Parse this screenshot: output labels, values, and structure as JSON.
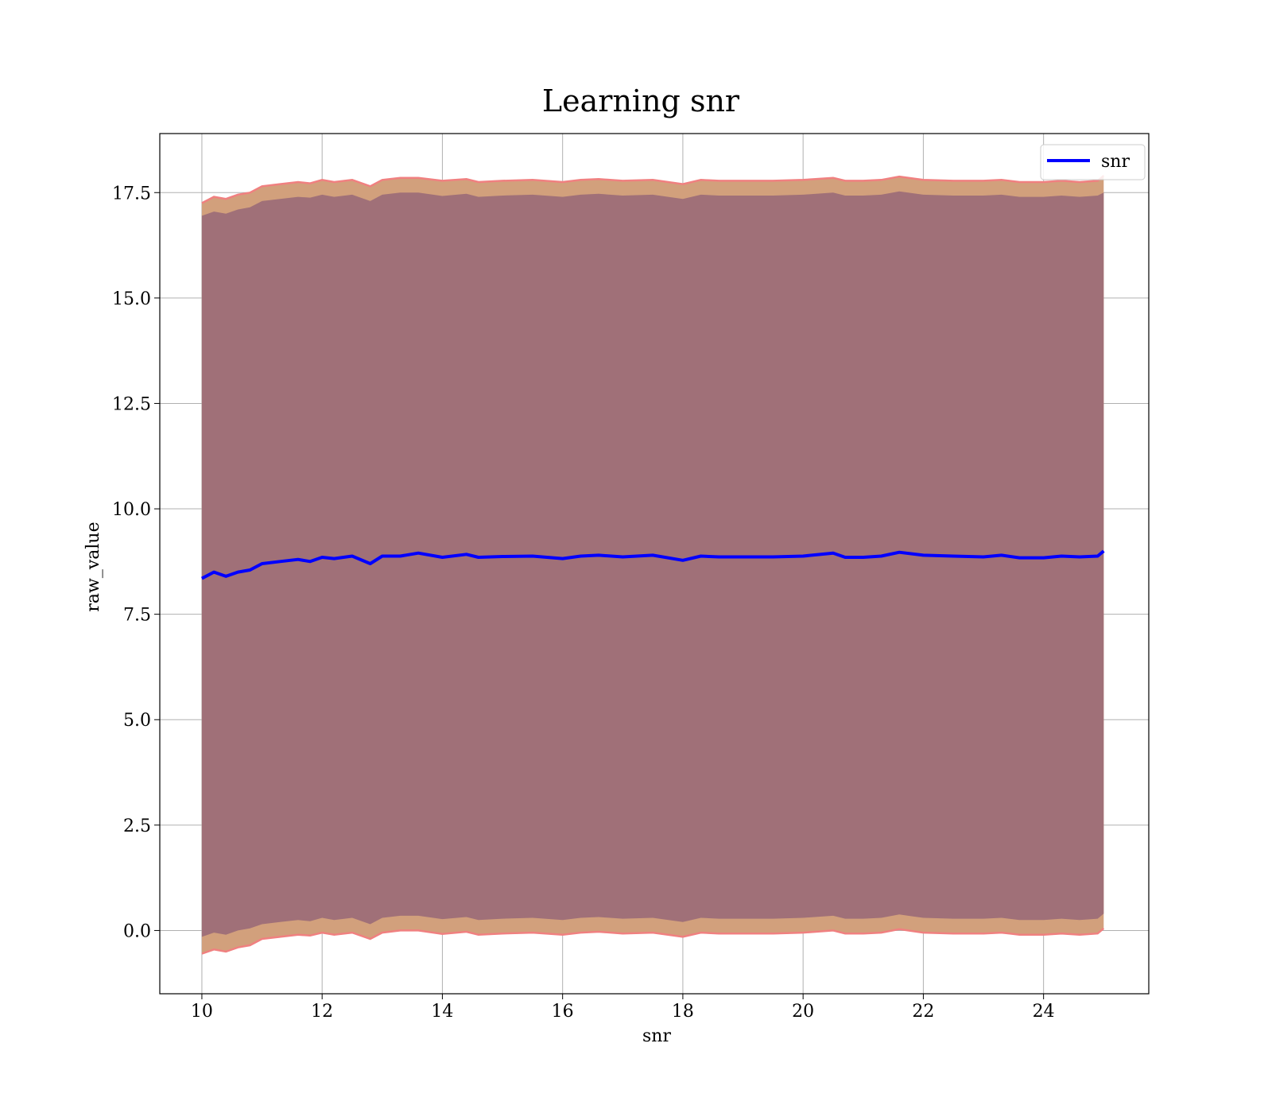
{
  "chart_data": {
    "type": "line",
    "title": "Learning snr",
    "xlabel": "snr",
    "ylabel": "raw_value",
    "xlim": [
      9.3,
      25.75
    ],
    "ylim": [
      -1.5,
      18.9
    ],
    "xticks": [
      10,
      12,
      14,
      16,
      18,
      20,
      22,
      24
    ],
    "xtick_labels": [
      "10",
      "12",
      "14",
      "16",
      "18",
      "20",
      "22",
      "24"
    ],
    "yticks": [
      0.0,
      2.5,
      5.0,
      7.5,
      10.0,
      12.5,
      15.0,
      17.5
    ],
    "ytick_labels": [
      "0.0",
      "2.5",
      "5.0",
      "7.5",
      "10.0",
      "12.5",
      "15.0",
      "17.5"
    ],
    "grid": true,
    "legend": {
      "position": "top-right",
      "entries": [
        "snr"
      ]
    },
    "colors": {
      "line": "#0000ff",
      "outer_band": "#d2a07c",
      "inner_band": "#a07078",
      "band_edge": "#f08080"
    },
    "series": [
      {
        "name": "snr",
        "x": [
          10.0,
          10.2,
          10.4,
          10.6,
          10.8,
          11.0,
          11.3,
          11.6,
          11.8,
          12.0,
          12.2,
          12.5,
          12.8,
          13.0,
          13.3,
          13.6,
          14.0,
          14.4,
          14.6,
          15.0,
          15.5,
          16.0,
          16.3,
          16.6,
          17.0,
          17.5,
          18.0,
          18.3,
          18.6,
          19.0,
          19.5,
          20.0,
          20.5,
          20.7,
          21.0,
          21.3,
          21.6,
          22.0,
          22.5,
          23.0,
          23.3,
          23.6,
          24.0,
          24.3,
          24.6,
          24.9,
          25.0
        ],
        "values": [
          8.35,
          8.5,
          8.4,
          8.5,
          8.55,
          8.7,
          8.75,
          8.8,
          8.75,
          8.85,
          8.82,
          8.88,
          8.7,
          8.88,
          8.88,
          8.95,
          8.85,
          8.92,
          8.85,
          8.87,
          8.88,
          8.82,
          8.88,
          8.9,
          8.86,
          8.9,
          8.78,
          8.88,
          8.86,
          8.86,
          8.86,
          8.88,
          8.95,
          8.85,
          8.85,
          8.88,
          8.97,
          8.9,
          8.88,
          8.86,
          8.9,
          8.84,
          8.84,
          8.88,
          8.86,
          8.88,
          9.0
        ],
        "outer_upper": [
          17.25,
          17.4,
          17.35,
          17.45,
          17.5,
          17.65,
          17.7,
          17.75,
          17.72,
          17.8,
          17.75,
          17.8,
          17.65,
          17.8,
          17.85,
          17.85,
          17.78,
          17.82,
          17.75,
          17.78,
          17.8,
          17.75,
          17.8,
          17.82,
          17.78,
          17.8,
          17.7,
          17.8,
          17.78,
          17.78,
          17.78,
          17.8,
          17.85,
          17.78,
          17.78,
          17.8,
          17.88,
          17.8,
          17.78,
          17.78,
          17.8,
          17.75,
          17.75,
          17.78,
          17.75,
          17.78,
          17.9
        ],
        "inner_upper": [
          16.95,
          17.05,
          17.0,
          17.1,
          17.15,
          17.3,
          17.35,
          17.4,
          17.38,
          17.45,
          17.4,
          17.45,
          17.3,
          17.45,
          17.5,
          17.5,
          17.42,
          17.47,
          17.4,
          17.43,
          17.45,
          17.4,
          17.45,
          17.47,
          17.43,
          17.45,
          17.35,
          17.45,
          17.43,
          17.43,
          17.43,
          17.45,
          17.5,
          17.43,
          17.43,
          17.45,
          17.53,
          17.45,
          17.43,
          17.43,
          17.45,
          17.4,
          17.4,
          17.43,
          17.4,
          17.43,
          17.5
        ],
        "inner_lower": [
          -0.15,
          -0.05,
          -0.1,
          0.0,
          0.05,
          0.15,
          0.2,
          0.25,
          0.22,
          0.3,
          0.25,
          0.3,
          0.15,
          0.3,
          0.35,
          0.35,
          0.27,
          0.32,
          0.25,
          0.28,
          0.3,
          0.25,
          0.3,
          0.32,
          0.28,
          0.3,
          0.2,
          0.3,
          0.28,
          0.28,
          0.28,
          0.3,
          0.35,
          0.28,
          0.28,
          0.3,
          0.38,
          0.3,
          0.28,
          0.28,
          0.3,
          0.25,
          0.25,
          0.28,
          0.25,
          0.28,
          0.4
        ],
        "outer_lower": [
          -0.55,
          -0.45,
          -0.5,
          -0.4,
          -0.35,
          -0.2,
          -0.15,
          -0.1,
          -0.12,
          -0.05,
          -0.1,
          -0.05,
          -0.2,
          -0.05,
          0.0,
          0.0,
          -0.08,
          -0.03,
          -0.1,
          -0.07,
          -0.05,
          -0.1,
          -0.05,
          -0.03,
          -0.07,
          -0.05,
          -0.15,
          -0.05,
          -0.07,
          -0.07,
          -0.07,
          -0.05,
          0.0,
          -0.07,
          -0.07,
          -0.05,
          0.03,
          -0.05,
          -0.07,
          -0.07,
          -0.05,
          -0.1,
          -0.1,
          -0.07,
          -0.1,
          -0.07,
          0.05
        ]
      }
    ]
  }
}
